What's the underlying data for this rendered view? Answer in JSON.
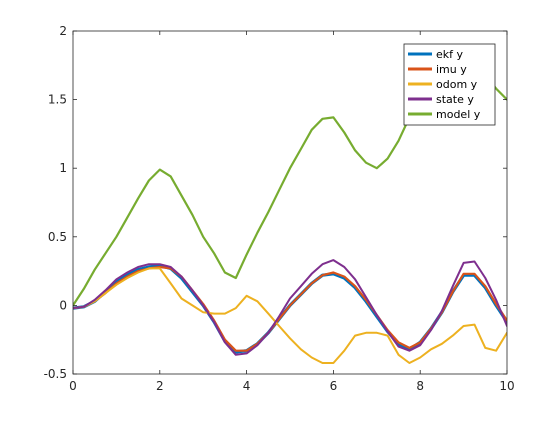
{
  "chart_data": {
    "type": "line",
    "xlim": [
      0,
      10
    ],
    "ylim": [
      -0.5,
      2
    ],
    "xticks": [
      0,
      2,
      4,
      6,
      8,
      10
    ],
    "yticks": [
      -0.5,
      0,
      0.5,
      1,
      1.5,
      2
    ],
    "xtick_labels": [
      "0",
      "2",
      "4",
      "6",
      "8",
      "10"
    ],
    "ytick_labels": [
      "-0.5",
      "0",
      "0.5",
      "1",
      "1.5",
      "2"
    ],
    "grid": false,
    "legend_position": "top-right",
    "series": [
      {
        "name": "ekf y",
        "color": "#0072BD",
        "x": [
          0,
          0.25,
          0.5,
          0.75,
          1.0,
          1.25,
          1.5,
          1.75,
          2.0,
          2.25,
          2.5,
          2.75,
          3.0,
          3.25,
          3.5,
          3.75,
          4.0,
          4.25,
          4.5,
          4.75,
          5.0,
          5.25,
          5.5,
          5.75,
          6.0,
          6.25,
          6.5,
          6.75,
          7.0,
          7.25,
          7.5,
          7.75,
          8.0,
          8.25,
          8.5,
          8.75,
          9.0,
          9.25,
          9.5,
          9.75,
          10.0
        ],
        "y": [
          -0.02,
          -0.01,
          0.03,
          0.1,
          0.17,
          0.22,
          0.26,
          0.28,
          0.29,
          0.27,
          0.2,
          0.1,
          0.0,
          -0.12,
          -0.26,
          -0.34,
          -0.33,
          -0.28,
          -0.2,
          -0.1,
          0.0,
          0.08,
          0.16,
          0.22,
          0.23,
          0.2,
          0.13,
          0.03,
          -0.08,
          -0.19,
          -0.28,
          -0.32,
          -0.27,
          -0.17,
          -0.05,
          0.1,
          0.22,
          0.22,
          0.13,
          0.0,
          -0.12
        ]
      },
      {
        "name": "imu y",
        "color": "#D95319",
        "x": [
          0,
          0.25,
          0.5,
          0.75,
          1.0,
          1.25,
          1.5,
          1.75,
          2.0,
          2.25,
          2.5,
          2.75,
          3.0,
          3.25,
          3.5,
          3.75,
          4.0,
          4.25,
          4.5,
          4.75,
          5.0,
          5.25,
          5.5,
          5.75,
          6.0,
          6.25,
          6.5,
          6.75,
          7.0,
          7.25,
          7.5,
          7.75,
          8.0,
          8.25,
          8.5,
          8.75,
          9.0,
          9.25,
          9.5,
          9.75,
          10.0
        ],
        "y": [
          -0.02,
          -0.01,
          0.03,
          0.09,
          0.16,
          0.21,
          0.25,
          0.27,
          0.28,
          0.27,
          0.21,
          0.11,
          0.01,
          -0.11,
          -0.25,
          -0.33,
          -0.33,
          -0.28,
          -0.2,
          -0.1,
          0.0,
          0.08,
          0.16,
          0.22,
          0.24,
          0.21,
          0.14,
          0.04,
          -0.07,
          -0.18,
          -0.27,
          -0.31,
          -0.27,
          -0.17,
          -0.05,
          0.1,
          0.23,
          0.23,
          0.14,
          0.01,
          -0.11
        ]
      },
      {
        "name": "odom y",
        "color": "#EDB120",
        "x": [
          0,
          0.25,
          0.5,
          0.75,
          1.0,
          1.25,
          1.5,
          1.75,
          2.0,
          2.25,
          2.5,
          2.75,
          3.0,
          3.25,
          3.5,
          3.75,
          4.0,
          4.25,
          4.5,
          4.75,
          5.0,
          5.25,
          5.5,
          5.75,
          6.0,
          6.25,
          6.5,
          6.75,
          7.0,
          7.25,
          7.5,
          7.75,
          8.0,
          8.25,
          8.5,
          8.75,
          9.0,
          9.25,
          9.5,
          9.75,
          10.0
        ],
        "y": [
          -0.02,
          -0.01,
          0.03,
          0.09,
          0.15,
          0.2,
          0.24,
          0.27,
          0.27,
          0.16,
          0.05,
          0.0,
          -0.05,
          -0.06,
          -0.06,
          -0.02,
          0.07,
          0.03,
          -0.06,
          -0.15,
          -0.24,
          -0.32,
          -0.38,
          -0.42,
          -0.42,
          -0.33,
          -0.22,
          -0.2,
          -0.2,
          -0.22,
          -0.36,
          -0.42,
          -0.38,
          -0.32,
          -0.28,
          -0.22,
          -0.15,
          -0.14,
          -0.31,
          -0.33,
          -0.2
        ]
      },
      {
        "name": "state y",
        "color": "#7E2F8E",
        "x": [
          0,
          0.25,
          0.5,
          0.75,
          1.0,
          1.25,
          1.5,
          1.75,
          2.0,
          2.25,
          2.5,
          2.75,
          3.0,
          3.25,
          3.5,
          3.75,
          4.0,
          4.25,
          4.5,
          4.75,
          5.0,
          5.25,
          5.5,
          5.75,
          6.0,
          6.25,
          6.5,
          6.75,
          7.0,
          7.25,
          7.5,
          7.75,
          8.0,
          8.25,
          8.5,
          8.75,
          9.0,
          9.25,
          9.5,
          9.75,
          10.0
        ],
        "y": [
          -0.02,
          -0.01,
          0.04,
          0.11,
          0.19,
          0.24,
          0.28,
          0.3,
          0.3,
          0.28,
          0.21,
          0.11,
          0.0,
          -0.12,
          -0.27,
          -0.36,
          -0.35,
          -0.29,
          -0.2,
          -0.08,
          0.05,
          0.14,
          0.23,
          0.3,
          0.33,
          0.28,
          0.19,
          0.06,
          -0.07,
          -0.19,
          -0.3,
          -0.33,
          -0.29,
          -0.18,
          -0.04,
          0.14,
          0.31,
          0.32,
          0.2,
          0.04,
          -0.15
        ]
      },
      {
        "name": "model y",
        "color": "#77AC30",
        "x": [
          0,
          0.25,
          0.5,
          0.75,
          1.0,
          1.25,
          1.5,
          1.75,
          2.0,
          2.25,
          2.5,
          2.75,
          3.0,
          3.25,
          3.5,
          3.75,
          4.0,
          4.25,
          4.5,
          4.75,
          5.0,
          5.25,
          5.5,
          5.75,
          6.0,
          6.25,
          6.5,
          6.75,
          7.0,
          7.25,
          7.5,
          7.75,
          8.0,
          8.25,
          8.5,
          8.75,
          9.0,
          9.25,
          9.5,
          9.75,
          10.0
        ],
        "y": [
          0.0,
          0.12,
          0.26,
          0.38,
          0.5,
          0.64,
          0.78,
          0.91,
          0.99,
          0.94,
          0.8,
          0.66,
          0.5,
          0.38,
          0.24,
          0.2,
          0.37,
          0.53,
          0.68,
          0.84,
          1.0,
          1.14,
          1.28,
          1.36,
          1.37,
          1.26,
          1.13,
          1.04,
          1.0,
          1.07,
          1.2,
          1.37,
          1.52,
          1.66,
          1.77,
          1.84,
          1.85,
          1.76,
          1.68,
          1.58,
          1.5
        ]
      }
    ]
  }
}
